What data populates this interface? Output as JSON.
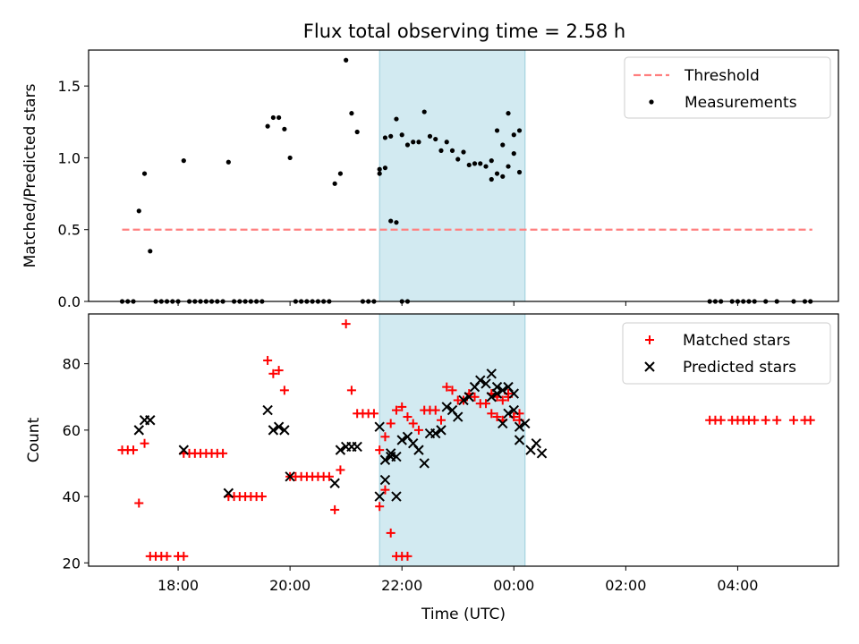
{
  "title": "Flux total observing time = 2.58 h",
  "chart_data": [
    {
      "type": "scatter",
      "title": "Flux total observing time = 2.58 h",
      "ylabel": "Matched/Predicted stars",
      "xlabel": "",
      "x_unit": "hours since 00:00 UTC of the first night (clock time wraps at 24:00)",
      "xlim": [
        "16:24",
        "05:48"
      ],
      "ylim": [
        0,
        1.75
      ],
      "yticks": [
        "0.0",
        "0.5",
        "1.0",
        "1.5"
      ],
      "highlight_span": [
        "21:36",
        "00:12"
      ],
      "legend": {
        "location": "upper right",
        "entries": [
          "Threshold",
          "Measurements"
        ]
      },
      "threshold": {
        "name": "Threshold",
        "value": 0.5,
        "x_range": [
          "17:00",
          "05:20"
        ],
        "color": "#ff7f7f",
        "style": "dashed"
      },
      "series": [
        {
          "name": "Measurements",
          "marker": "dot",
          "color": "#000000",
          "points": [
            [
              "17:00",
              0
            ],
            [
              "17:06",
              0
            ],
            [
              "17:12",
              0
            ],
            [
              "17:18",
              0.63
            ],
            [
              "17:24",
              0.89
            ],
            [
              "17:30",
              0.35
            ],
            [
              "17:36",
              0
            ],
            [
              "17:42",
              0
            ],
            [
              "17:48",
              0
            ],
            [
              "17:54",
              0
            ],
            [
              "18:00",
              0
            ],
            [
              "18:06",
              0.98
            ],
            [
              "18:12",
              0
            ],
            [
              "18:18",
              0
            ],
            [
              "18:24",
              0
            ],
            [
              "18:30",
              0
            ],
            [
              "18:36",
              0
            ],
            [
              "18:42",
              0
            ],
            [
              "18:48",
              0
            ],
            [
              "18:54",
              0.97
            ],
            [
              "19:00",
              0
            ],
            [
              "19:06",
              0
            ],
            [
              "19:12",
              0
            ],
            [
              "19:18",
              0
            ],
            [
              "19:24",
              0
            ],
            [
              "19:30",
              0
            ],
            [
              "19:36",
              1.22
            ],
            [
              "19:42",
              1.28
            ],
            [
              "19:48",
              1.28
            ],
            [
              "19:54",
              1.2
            ],
            [
              "20:00",
              1.0
            ],
            [
              "20:06",
              0
            ],
            [
              "20:12",
              0
            ],
            [
              "20:18",
              0
            ],
            [
              "20:24",
              0
            ],
            [
              "20:30",
              0
            ],
            [
              "20:36",
              0
            ],
            [
              "20:42",
              0
            ],
            [
              "20:48",
              0.82
            ],
            [
              "20:54",
              0.89
            ],
            [
              "21:00",
              1.68
            ],
            [
              "21:06",
              1.31
            ],
            [
              "21:12",
              1.18
            ],
            [
              "21:18",
              0
            ],
            [
              "21:24",
              0
            ],
            [
              "21:30",
              0
            ],
            [
              "21:36",
              0.89
            ],
            [
              "21:42",
              0.93
            ],
            [
              "21:48",
              0.56
            ],
            [
              "21:54",
              0.55
            ],
            [
              "22:00",
              0
            ],
            [
              "22:06",
              0
            ],
            [
              "21:36",
              0.92
            ],
            [
              "21:42",
              1.14
            ],
            [
              "21:48",
              1.15
            ],
            [
              "21:54",
              1.27
            ],
            [
              "22:00",
              1.16
            ],
            [
              "22:06",
              1.09
            ],
            [
              "22:12",
              1.11
            ],
            [
              "22:18",
              1.11
            ],
            [
              "22:24",
              1.32
            ],
            [
              "22:30",
              1.15
            ],
            [
              "22:36",
              1.13
            ],
            [
              "22:42",
              1.05
            ],
            [
              "22:48",
              1.11
            ],
            [
              "22:54",
              1.05
            ],
            [
              "23:00",
              0.99
            ],
            [
              "23:06",
              1.04
            ],
            [
              "23:12",
              0.95
            ],
            [
              "23:18",
              0.96
            ],
            [
              "23:24",
              0.96
            ],
            [
              "23:30",
              0.94
            ],
            [
              "23:36",
              0.85
            ],
            [
              "23:42",
              0.89
            ],
            [
              "23:48",
              0.87
            ],
            [
              "23:54",
              0.94
            ],
            [
              "00:00",
              1.03
            ],
            [
              "00:06",
              0.9
            ],
            [
              "23:36",
              0.98
            ],
            [
              "23:42",
              1.19
            ],
            [
              "23:48",
              1.09
            ],
            [
              "23:54",
              1.31
            ],
            [
              "00:00",
              1.16
            ],
            [
              "00:06",
              1.19
            ],
            [
              "03:30",
              0
            ],
            [
              "03:36",
              0
            ],
            [
              "03:42",
              0
            ],
            [
              "03:54",
              0
            ],
            [
              "04:00",
              0
            ],
            [
              "04:06",
              0
            ],
            [
              "04:12",
              0
            ],
            [
              "04:18",
              0
            ],
            [
              "04:30",
              0
            ],
            [
              "04:42",
              0
            ],
            [
              "05:00",
              0
            ],
            [
              "05:12",
              0
            ],
            [
              "05:18",
              0
            ]
          ]
        }
      ]
    },
    {
      "type": "scatter",
      "ylabel": "Count",
      "xlabel": "Time (UTC)",
      "x_unit": "hours since 00:00 UTC of the first night (clock time wraps at 24:00)",
      "xlim": [
        "16:24",
        "05:48"
      ],
      "ylim": [
        19,
        95
      ],
      "yticks": [
        "20",
        "40",
        "60",
        "80"
      ],
      "xticks": [
        "18:00",
        "20:00",
        "22:00",
        "00:00",
        "02:00",
        "04:00"
      ],
      "highlight_span": [
        "21:36",
        "00:12"
      ],
      "legend": {
        "location": "upper right",
        "entries": [
          "Matched stars",
          "Predicted stars"
        ]
      },
      "series": [
        {
          "name": "Matched stars",
          "marker": "plus",
          "color": "#ff0000",
          "points": [
            [
              "17:00",
              54
            ],
            [
              "17:06",
              54
            ],
            [
              "17:12",
              54
            ],
            [
              "17:18",
              38
            ],
            [
              "17:24",
              56
            ],
            [
              "17:30",
              22
            ],
            [
              "17:36",
              22
            ],
            [
              "17:42",
              22
            ],
            [
              "17:48",
              22
            ],
            [
              "18:00",
              22
            ],
            [
              "18:06",
              22
            ],
            [
              "18:06",
              53
            ],
            [
              "18:12",
              53
            ],
            [
              "18:18",
              53
            ],
            [
              "18:24",
              53
            ],
            [
              "18:30",
              53
            ],
            [
              "18:36",
              53
            ],
            [
              "18:42",
              53
            ],
            [
              "18:48",
              53
            ],
            [
              "18:54",
              40
            ],
            [
              "19:00",
              40
            ],
            [
              "19:06",
              40
            ],
            [
              "19:12",
              40
            ],
            [
              "19:18",
              40
            ],
            [
              "19:24",
              40
            ],
            [
              "19:30",
              40
            ],
            [
              "19:36",
              81
            ],
            [
              "19:42",
              77
            ],
            [
              "19:48",
              78
            ],
            [
              "19:54",
              72
            ],
            [
              "20:00",
              46
            ],
            [
              "20:06",
              46
            ],
            [
              "20:12",
              46
            ],
            [
              "20:18",
              46
            ],
            [
              "20:24",
              46
            ],
            [
              "20:30",
              46
            ],
            [
              "20:36",
              46
            ],
            [
              "20:42",
              46
            ],
            [
              "20:48",
              36
            ],
            [
              "20:54",
              48
            ],
            [
              "21:00",
              92
            ],
            [
              "21:06",
              72
            ],
            [
              "21:12",
              65
            ],
            [
              "21:18",
              65
            ],
            [
              "21:24",
              65
            ],
            [
              "21:30",
              65
            ],
            [
              "21:36",
              54
            ],
            [
              "21:42",
              42
            ],
            [
              "21:48",
              29
            ],
            [
              "21:54",
              22
            ],
            [
              "22:00",
              22
            ],
            [
              "22:06",
              22
            ],
            [
              "21:36",
              37
            ],
            [
              "21:42",
              58
            ],
            [
              "21:48",
              62
            ],
            [
              "21:54",
              66
            ],
            [
              "22:00",
              67
            ],
            [
              "22:06",
              64
            ],
            [
              "22:12",
              62
            ],
            [
              "22:18",
              60
            ],
            [
              "22:24",
              66
            ],
            [
              "22:30",
              66
            ],
            [
              "22:36",
              66
            ],
            [
              "22:42",
              63
            ],
            [
              "22:48",
              73
            ],
            [
              "22:54",
              72
            ],
            [
              "23:00",
              69
            ],
            [
              "23:06",
              69
            ],
            [
              "23:12",
              71
            ],
            [
              "23:18",
              70
            ],
            [
              "23:24",
              68
            ],
            [
              "23:30",
              68
            ],
            [
              "23:36",
              65
            ],
            [
              "23:42",
              64
            ],
            [
              "23:48",
              63
            ],
            [
              "23:54",
              70
            ],
            [
              "00:00",
              64
            ],
            [
              "00:06",
              65
            ],
            [
              "23:36",
              71
            ],
            [
              "23:42",
              70
            ],
            [
              "23:48",
              69
            ],
            [
              "23:54",
              71
            ],
            [
              "00:00",
              64
            ],
            [
              "00:06",
              63
            ],
            [
              "03:30",
              63
            ],
            [
              "03:36",
              63
            ],
            [
              "03:42",
              63
            ],
            [
              "03:54",
              63
            ],
            [
              "04:00",
              63
            ],
            [
              "04:06",
              63
            ],
            [
              "04:12",
              63
            ],
            [
              "04:18",
              63
            ],
            [
              "04:30",
              63
            ],
            [
              "04:42",
              63
            ],
            [
              "05:00",
              63
            ],
            [
              "05:12",
              63
            ],
            [
              "05:18",
              63
            ]
          ]
        },
        {
          "name": "Predicted stars",
          "marker": "x",
          "color": "#000000",
          "points": [
            [
              "17:18",
              60
            ],
            [
              "17:24",
              63
            ],
            [
              "17:30",
              63
            ],
            [
              "18:06",
              54
            ],
            [
              "18:54",
              41
            ],
            [
              "19:36",
              66
            ],
            [
              "19:42",
              60
            ],
            [
              "19:48",
              61
            ],
            [
              "19:54",
              60
            ],
            [
              "20:00",
              46
            ],
            [
              "20:48",
              44
            ],
            [
              "20:54",
              54
            ],
            [
              "21:00",
              55
            ],
            [
              "21:06",
              55
            ],
            [
              "21:12",
              55
            ],
            [
              "21:36",
              61
            ],
            [
              "21:42",
              45
            ],
            [
              "21:48",
              52
            ],
            [
              "21:54",
              40
            ],
            [
              "21:36",
              40
            ],
            [
              "21:42",
              51
            ],
            [
              "21:48",
              53
            ],
            [
              "21:54",
              52
            ],
            [
              "22:00",
              57
            ],
            [
              "22:06",
              58
            ],
            [
              "22:12",
              56
            ],
            [
              "22:18",
              54
            ],
            [
              "22:24",
              50
            ],
            [
              "22:30",
              59
            ],
            [
              "22:36",
              59
            ],
            [
              "22:42",
              60
            ],
            [
              "22:48",
              67
            ],
            [
              "22:54",
              66
            ],
            [
              "23:00",
              64
            ],
            [
              "23:06",
              69
            ],
            [
              "23:12",
              70
            ],
            [
              "23:18",
              73
            ],
            [
              "23:24",
              75
            ],
            [
              "23:30",
              74
            ],
            [
              "23:36",
              77
            ],
            [
              "23:42",
              71
            ],
            [
              "23:48",
              72
            ],
            [
              "23:54",
              73
            ],
            [
              "00:00",
              66
            ],
            [
              "00:06",
              61
            ],
            [
              "23:36",
              70
            ],
            [
              "23:42",
              73
            ],
            [
              "23:48",
              62
            ],
            [
              "23:54",
              65
            ],
            [
              "00:00",
              71
            ],
            [
              "00:06",
              57
            ],
            [
              "00:12",
              62
            ],
            [
              "00:18",
              54
            ],
            [
              "00:24",
              56
            ],
            [
              "00:30",
              53
            ]
          ]
        }
      ]
    }
  ],
  "colors": {
    "threshold": "#ff7f7f",
    "measurements": "#000000",
    "matched": "#ff0000",
    "predicted": "#000000",
    "span_fill": "#add8e6",
    "span_edge": "#9bcfdc"
  }
}
